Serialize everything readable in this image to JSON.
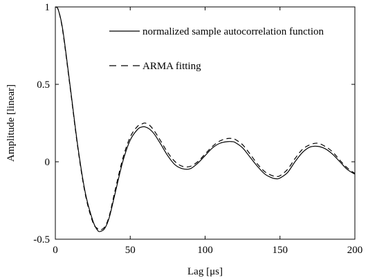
{
  "chart_data": {
    "type": "line",
    "xlabel": "Lag [μs]",
    "ylabel": "Amplitude [linear]",
    "xlim": [
      0,
      200
    ],
    "ylim": [
      -0.5,
      1
    ],
    "xticks": [
      0,
      50,
      100,
      150,
      200
    ],
    "yticks": [
      -0.5,
      0,
      0.5,
      1
    ],
    "xtick_labels": [
      "0",
      "50",
      "100",
      "150",
      "200"
    ],
    "ytick_labels": [
      "-0.5",
      "0",
      "0.5",
      "1"
    ],
    "grid": false,
    "legend_position": "top-right",
    "series": [
      {
        "name": "normalized sample autocorrelation function",
        "line_style": "solid",
        "color": "#000000",
        "x": [
          0,
          2,
          5,
          10,
          15,
          20,
          25,
          28,
          30,
          33,
          36,
          40,
          45,
          50,
          55,
          58,
          60,
          63,
          66,
          70,
          75,
          80,
          85,
          90,
          95,
          100,
          105,
          110,
          115,
          118,
          120,
          125,
          130,
          135,
          140,
          145,
          148,
          150,
          155,
          160,
          165,
          170,
          175,
          180,
          185,
          190,
          195,
          200
        ],
        "y": [
          1.0,
          0.98,
          0.85,
          0.48,
          0.1,
          -0.2,
          -0.38,
          -0.44,
          -0.45,
          -0.43,
          -0.36,
          -0.2,
          0.0,
          0.14,
          0.21,
          0.225,
          0.225,
          0.21,
          0.18,
          0.12,
          0.04,
          -0.02,
          -0.045,
          -0.045,
          -0.01,
          0.04,
          0.09,
          0.12,
          0.13,
          0.13,
          0.125,
          0.09,
          0.03,
          -0.03,
          -0.08,
          -0.105,
          -0.11,
          -0.105,
          -0.07,
          0.0,
          0.06,
          0.095,
          0.1,
          0.085,
          0.05,
          0.0,
          -0.05,
          -0.08
        ]
      },
      {
        "name": "ARMA fitting",
        "line_style": "dashed",
        "color": "#000000",
        "x": [
          0,
          2,
          5,
          10,
          15,
          20,
          25,
          28,
          30,
          33,
          36,
          40,
          45,
          50,
          55,
          58,
          60,
          63,
          66,
          70,
          75,
          80,
          85,
          90,
          95,
          100,
          105,
          110,
          115,
          118,
          120,
          125,
          130,
          135,
          140,
          145,
          148,
          150,
          155,
          160,
          165,
          170,
          175,
          180,
          185,
          190,
          195,
          200
        ],
        "y": [
          1.0,
          0.98,
          0.84,
          0.47,
          0.09,
          -0.21,
          -0.39,
          -0.43,
          -0.44,
          -0.42,
          -0.35,
          -0.18,
          0.02,
          0.16,
          0.23,
          0.245,
          0.25,
          0.235,
          0.2,
          0.14,
          0.06,
          0.0,
          -0.03,
          -0.03,
          0.0,
          0.05,
          0.1,
          0.135,
          0.15,
          0.15,
          0.145,
          0.11,
          0.05,
          -0.015,
          -0.065,
          -0.09,
          -0.095,
          -0.09,
          -0.05,
          0.02,
          0.08,
          0.11,
          0.12,
          0.1,
          0.065,
          0.01,
          -0.04,
          -0.075
        ]
      }
    ]
  }
}
